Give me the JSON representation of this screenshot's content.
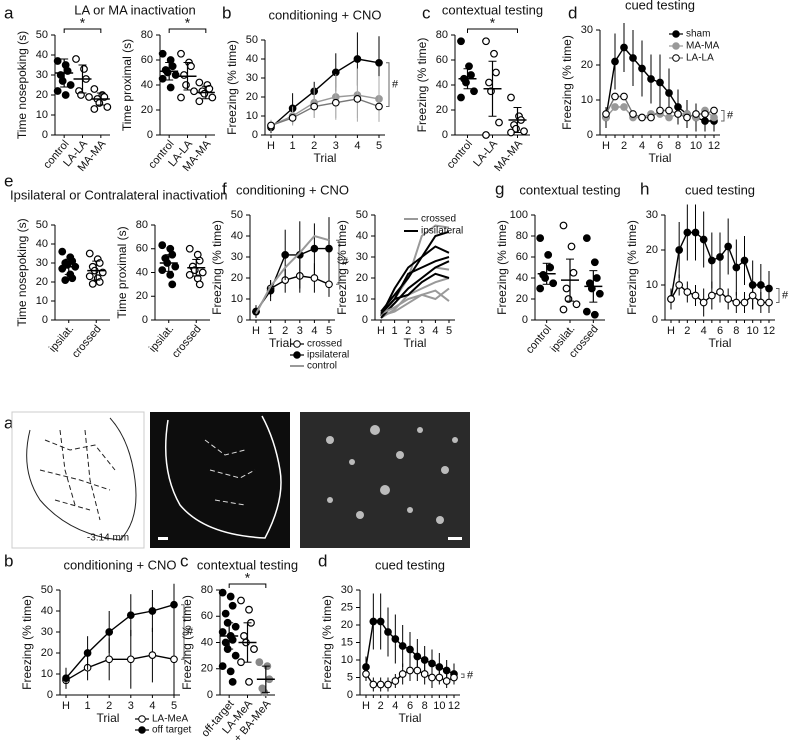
{
  "chart_data": [
    {
      "type": "dot",
      "panel": "a",
      "title": "LA or MA inactivation",
      "ylabel": "Time nosepoking (s)",
      "categories": [
        "control",
        "LA-LA",
        "MA-MA"
      ],
      "points": [
        [
          37,
          35,
          32,
          30,
          27,
          25,
          22,
          20
        ],
        [
          38,
          33,
          28,
          22,
          20,
          19
        ],
        [
          23,
          20,
          19,
          18,
          16,
          14,
          13
        ]
      ],
      "means": [
        31,
        28,
        18
      ],
      "errors": [
        7,
        7,
        3
      ],
      "markers": [
        "filled",
        "open",
        "open"
      ],
      "colors": [
        "#000000",
        "#000000",
        "#000000"
      ],
      "ylim": [
        0,
        50
      ],
      "yticks": [
        0,
        10,
        20,
        30,
        40,
        50
      ],
      "significance": "*"
    },
    {
      "type": "dot",
      "ylabel": "Time proximal (s)",
      "categories": [
        "control",
        "LA-LA",
        "MA-MA"
      ],
      "points": [
        [
          65,
          60,
          55,
          52,
          50,
          48,
          45,
          38
        ],
        [
          65,
          58,
          55,
          48,
          40,
          35,
          30
        ],
        [
          42,
          40,
          37,
          35,
          33,
          30,
          27
        ]
      ],
      "means": [
        51,
        47,
        34
      ],
      "errors": [
        7,
        11,
        5
      ],
      "markers": [
        "filled",
        "open",
        "open"
      ],
      "colors": [
        "#000000",
        "#000000",
        "#000000"
      ],
      "ylim": [
        0,
        80
      ],
      "yticks": [
        0,
        20,
        40,
        60,
        80
      ],
      "significance": "*"
    },
    {
      "type": "line",
      "panel": "b",
      "title": "conditioning + CNO",
      "ylabel": "Freezing (% time)",
      "xlabel": "Trial",
      "categories": [
        "H",
        "1",
        "2",
        "3",
        "4",
        "5"
      ],
      "series": [
        {
          "color": "#000000",
          "marker": "filled",
          "values": [
            4,
            14,
            23,
            33,
            40,
            38
          ],
          "errors": [
            3,
            8,
            5,
            10,
            14,
            14
          ]
        },
        {
          "color": "#999999",
          "marker": "filled",
          "values": [
            5,
            10,
            17,
            20,
            21,
            19
          ],
          "errors": [
            3,
            5,
            8,
            12,
            14,
            12
          ]
        },
        {
          "color": "#777777",
          "marker": "open",
          "values": [
            5,
            9,
            15,
            17,
            19,
            15
          ],
          "errors": [
            2,
            4,
            6,
            8,
            10,
            8
          ]
        }
      ],
      "ylim": [
        0,
        50
      ],
      "yticks": [
        0,
        10,
        20,
        30,
        40,
        50
      ],
      "significance": "#"
    },
    {
      "type": "dot",
      "panel": "c",
      "title": "contextual testing",
      "ylabel": "Freezing (% time)",
      "categories": [
        "control",
        "LA-LA",
        "MA-MA"
      ],
      "points": [
        [
          75,
          55,
          48,
          45,
          42,
          35,
          30
        ],
        [
          75,
          65,
          50,
          42,
          35,
          10,
          0
        ],
        [
          30,
          15,
          12,
          8,
          5,
          3,
          2
        ]
      ],
      "means": [
        45,
        37,
        12
      ],
      "errors": [
        8,
        22,
        10
      ],
      "markers": [
        "filled",
        "open",
        "open"
      ],
      "colors": [
        "#000000",
        "#000000",
        "#000000"
      ],
      "ylim": [
        0,
        80
      ],
      "yticks": [
        0,
        20,
        40,
        60,
        80
      ],
      "significance": "*"
    },
    {
      "type": "line",
      "panel": "d",
      "title": "cued testing",
      "ylabel": "Freezing (% time)",
      "xlabel": "Trial",
      "categories": [
        "H",
        null,
        "2",
        null,
        "4",
        null,
        "6",
        null,
        "8",
        null,
        "10",
        null,
        "12"
      ],
      "series": [
        {
          "name": "sham",
          "color": "#000000",
          "marker": "filled",
          "values": [
            5,
            21,
            25,
            22,
            19,
            16,
            15,
            12,
            8,
            6,
            5,
            4,
            4
          ],
          "errors": [
            3,
            8,
            7,
            8,
            8,
            7,
            8,
            7,
            5,
            4,
            4,
            3,
            3
          ]
        },
        {
          "name": "MA-MA",
          "color": "#999999",
          "marker": "filled",
          "values": [
            5,
            8,
            8,
            5,
            5,
            6,
            6,
            5,
            6,
            6,
            5,
            7,
            5
          ]
        },
        {
          "name": "LA-LA",
          "color": "#777777",
          "marker": "open",
          "values": [
            6,
            11,
            11,
            6,
            5,
            5,
            7,
            7,
            6,
            5,
            6,
            6,
            7
          ]
        }
      ],
      "legend": "upper right",
      "ylim": [
        0,
        30
      ],
      "yticks": [
        0,
        10,
        20,
        30
      ],
      "significance": "#"
    },
    {
      "type": "dot",
      "panel": "e",
      "title": "Ipsilateral or Contralateral inactivation",
      "ylabel": "Time nosepoking (s)",
      "categories": [
        "ipsilat.",
        "crossed"
      ],
      "points": [
        [
          36,
          33,
          31,
          30,
          29,
          28,
          27,
          24,
          22,
          21
        ],
        [
          35,
          32,
          30,
          28,
          26,
          25,
          23,
          22,
          20,
          19
        ]
      ],
      "means": [
        28,
        26
      ],
      "errors": [
        4,
        5
      ],
      "markers": [
        "filled",
        "open"
      ],
      "colors": [
        "#000000",
        "#000000"
      ],
      "ylim": [
        0,
        50
      ],
      "yticks": [
        0,
        10,
        20,
        30,
        40,
        50
      ]
    },
    {
      "type": "dot",
      "ylabel": "Time proximal (s)",
      "categories": [
        "ipsilat.",
        "crossed"
      ],
      "points": [
        [
          63,
          60,
          55,
          52,
          48,
          45,
          42,
          38,
          30
        ],
        [
          60,
          55,
          50,
          45,
          42,
          40,
          38,
          35,
          30
        ]
      ],
      "means": [
        48,
        44
      ],
      "errors": [
        7,
        7
      ],
      "markers": [
        "filled",
        "open"
      ],
      "colors": [
        "#000000",
        "#000000"
      ],
      "ylim": [
        0,
        80
      ],
      "yticks": [
        0,
        20,
        40,
        60,
        80
      ]
    },
    {
      "type": "line",
      "panel": "f",
      "title": "conditioning + CNO",
      "ylabel": "Freezing (% time)",
      "xlabel": "Trial",
      "categories": [
        "H",
        "1",
        "2",
        "3",
        "4",
        "5"
      ],
      "series": [
        {
          "name": "crossed",
          "color": "#000000",
          "marker": "open",
          "values": [
            4,
            15,
            19,
            21,
            20,
            17
          ],
          "errors": [
            3,
            4,
            6,
            8,
            7,
            6
          ]
        },
        {
          "name": "ipsilateral",
          "color": "#000000",
          "marker": "filled",
          "values": [
            4,
            14,
            31,
            31,
            34,
            34
          ],
          "errors": [
            3,
            5,
            12,
            16,
            12,
            15
          ]
        },
        {
          "name": "control",
          "color": "#999999",
          "marker": "none",
          "values": [
            3,
            16,
            25,
            32,
            40,
            38
          ]
        }
      ],
      "legend": "below",
      "ylim": [
        0,
        50
      ],
      "yticks": [
        0,
        10,
        20,
        30,
        40,
        50
      ],
      "significance": "#"
    },
    {
      "type": "line",
      "ylabel": "Freezing (% time)",
      "xlabel": "Trial",
      "categories": [
        "H",
        "1",
        "2",
        "3",
        "4",
        "5"
      ],
      "series": [
        {
          "name": "crossed",
          "color": "#999999",
          "marker": "none",
          "values": [
            2,
            10,
            20,
            40,
            45,
            44
          ]
        },
        {
          "name": "ipsilateral",
          "color": "#000000",
          "marker": "none",
          "values": [
            2,
            15,
            25,
            30,
            40,
            42
          ]
        },
        {
          "color": "#999999",
          "marker": "none",
          "values": [
            3,
            8,
            15,
            20,
            25,
            24
          ]
        },
        {
          "color": "#000000",
          "marker": "none",
          "values": [
            4,
            12,
            20,
            30,
            35,
            32
          ]
        },
        {
          "color": "#999999",
          "marker": "none",
          "values": [
            1,
            5,
            12,
            15,
            18,
            20
          ]
        },
        {
          "color": "#000000",
          "marker": "none",
          "values": [
            3,
            10,
            22,
            25,
            28,
            30
          ]
        },
        {
          "color": "#999999",
          "marker": "none",
          "values": [
            2,
            4,
            8,
            12,
            10,
            15
          ]
        },
        {
          "color": "#000000",
          "marker": "none",
          "values": [
            1,
            8,
            15,
            20,
            25,
            28
          ]
        },
        {
          "color": "#999999",
          "marker": "none",
          "values": [
            3,
            6,
            10,
            12,
            14,
            9
          ]
        },
        {
          "color": "#000000",
          "marker": "none",
          "values": [
            3,
            10,
            12,
            18,
            22,
            20
          ]
        }
      ],
      "legend": "upper right",
      "ylim": [
        0,
        50
      ],
      "yticks": [
        0,
        10,
        20,
        30,
        40,
        50
      ]
    },
    {
      "type": "dot",
      "panel": "g",
      "title": "contextual testing",
      "ylabel": "Freezing (% time)",
      "categories": [
        "control",
        "ipsilat.",
        "crossed"
      ],
      "points": [
        [
          78,
          62,
          50,
          43,
          40,
          35,
          30
        ],
        [
          90,
          70,
          45,
          30,
          20,
          15,
          10
        ],
        [
          78,
          55,
          40,
          35,
          30,
          25,
          8,
          5
        ]
      ],
      "means": [
        44,
        38,
        32
      ],
      "errors": [
        10,
        20,
        15
      ],
      "markers": [
        "filled",
        "open",
        "filled"
      ],
      "colors": [
        "#000000",
        "#000000",
        "#000000"
      ],
      "ylim": [
        0,
        100
      ],
      "yticks": [
        0,
        20,
        40,
        60,
        80,
        100
      ]
    },
    {
      "type": "line",
      "panel": "h",
      "title": "cued testing",
      "ylabel": "Freezing (% time)",
      "xlabel": "Trial",
      "categories": [
        "H",
        null,
        "2",
        null,
        "4",
        null,
        "6",
        null,
        "8",
        null,
        "10",
        null,
        "12"
      ],
      "series": [
        {
          "color": "#000000",
          "marker": "filled",
          "values": [
            6,
            20,
            25,
            25,
            23,
            17,
            18,
            21,
            15,
            17,
            10,
            10,
            9
          ],
          "errors": [
            3,
            8,
            8,
            8,
            8,
            8,
            7,
            8,
            8,
            7,
            7,
            6,
            5
          ]
        },
        {
          "color": "#000000",
          "marker": "open",
          "values": [
            6,
            10,
            8,
            7,
            5,
            7,
            8,
            6,
            5,
            5,
            7,
            5,
            5
          ],
          "errors": [
            2,
            3,
            3,
            3,
            4,
            4,
            3,
            3,
            3,
            3,
            4,
            3,
            3
          ]
        }
      ],
      "ylim": [
        0,
        30
      ],
      "yticks": [
        0,
        10,
        20,
        30
      ],
      "significance": "#"
    },
    {
      "type": "line",
      "panel": "b",
      "title": "conditioning + CNO",
      "ylabel": "Freezing (% time)",
      "xlabel": "Trial",
      "categories": [
        "H",
        "1",
        "2",
        "3",
        "4",
        "5"
      ],
      "series": [
        {
          "name": "LA-MeA",
          "color": "#000000",
          "marker": "open",
          "values": [
            7,
            13,
            17,
            17,
            19,
            17
          ],
          "errors": [
            4,
            6,
            10,
            14,
            13,
            17
          ]
        },
        {
          "name": "off target",
          "color": "#000000",
          "marker": "filled",
          "values": [
            8,
            20,
            30,
            38,
            40,
            43
          ],
          "errors": [
            5,
            8,
            10,
            10,
            10,
            10
          ]
        }
      ],
      "legend": "below",
      "ylim": [
        0,
        50
      ],
      "yticks": [
        0,
        10,
        20,
        30,
        40,
        50
      ],
      "significance": "#"
    },
    {
      "type": "dot",
      "panel": "c",
      "title": "contextual testing",
      "ylabel": "Freezing (% time)",
      "categories": [
        "off-target",
        "LA-MeA",
        "+ BA-MeA"
      ],
      "points": [
        [
          78,
          75,
          68,
          62,
          55,
          52,
          48,
          45,
          42,
          40,
          35,
          30,
          22,
          18,
          10
        ],
        [
          72,
          65,
          55,
          45,
          40,
          35,
          25,
          10
        ],
        [
          25,
          22,
          12,
          5,
          2
        ]
      ],
      "means": [
        45,
        40,
        12
      ],
      "errors": [
        10,
        15,
        10
      ],
      "markers": [
        "filled",
        "open",
        "filled"
      ],
      "colors": [
        "#000000",
        "#000000",
        "#888888"
      ],
      "ylim": [
        0,
        80
      ],
      "yticks": [
        0,
        20,
        40,
        60,
        80
      ],
      "significance": "*"
    },
    {
      "type": "line",
      "panel": "d",
      "title": "cued testing",
      "ylabel": "Freezing (% time)",
      "xlabel": "Trial",
      "categories": [
        "H",
        null,
        "2",
        null,
        "4",
        null,
        "6",
        null,
        "8",
        null,
        "10",
        null,
        "12"
      ],
      "series": [
        {
          "color": "#000000",
          "marker": "filled",
          "values": [
            8,
            21,
            21,
            18,
            16,
            14,
            13,
            11,
            10,
            9,
            8,
            7,
            6
          ],
          "errors": [
            3,
            8,
            8,
            7,
            7,
            6,
            5,
            5,
            4,
            4,
            4,
            3,
            3
          ]
        },
        {
          "color": "#000000",
          "marker": "open",
          "values": [
            6,
            3,
            3,
            3,
            4,
            6,
            7,
            7,
            6,
            5,
            5,
            4,
            5
          ],
          "errors": [
            2,
            2,
            2,
            2,
            2,
            3,
            3,
            3,
            3,
            3,
            2,
            2,
            2
          ]
        }
      ],
      "ylim": [
        0,
        30
      ],
      "yticks": [
        0,
        5,
        10,
        15,
        20,
        25,
        30
      ],
      "significance": "#"
    }
  ],
  "figure": {
    "image_panel": "a",
    "section_label": "-3.14 mm"
  }
}
